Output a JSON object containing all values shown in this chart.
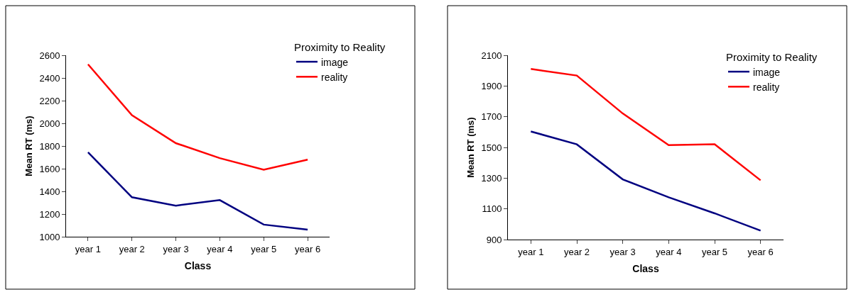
{
  "chart_data": [
    {
      "type": "line",
      "xlabel": "Class",
      "ylabel": "Mean RT (ms)",
      "legend_title": "Proximity to Reality",
      "legend": "top right",
      "grid": false,
      "marker": "none",
      "line_style": "solid",
      "categories": [
        "year 1",
        "year 2",
        "year 3",
        "year 4",
        "year 5",
        "year 6"
      ],
      "ylim": [
        1000,
        2600
      ],
      "yticks": [
        1000,
        1200,
        1400,
        1600,
        1800,
        2000,
        2200,
        2400,
        2600
      ],
      "series": [
        {
          "name": "image",
          "color": "#000080",
          "values": [
            1744,
            1348,
            1274,
            1323,
            1107,
            1062
          ]
        },
        {
          "name": "reality",
          "color": "#ff0000",
          "values": [
            2520,
            2072,
            1825,
            1693,
            1591,
            1680
          ]
        }
      ]
    },
    {
      "type": "line",
      "xlabel": "Class",
      "ylabel": "Mean RT (ms)",
      "legend_title": "Proximity to Reality",
      "legend": "top right",
      "grid": false,
      "marker": "none",
      "line_style": "solid",
      "categories": [
        "year 1",
        "year 2",
        "year 3",
        "year 4",
        "year 5",
        "year 6"
      ],
      "ylim": [
        900,
        2100
      ],
      "yticks": [
        900,
        1100,
        1300,
        1500,
        1700,
        1900,
        2100
      ],
      "series": [
        {
          "name": "image",
          "color": "#000080",
          "values": [
            1604,
            1520,
            1292,
            1175,
            1071,
            958
          ]
        },
        {
          "name": "reality",
          "color": "#ff0000",
          "values": [
            2011,
            1968,
            1721,
            1515,
            1521,
            1286
          ]
        }
      ]
    }
  ]
}
